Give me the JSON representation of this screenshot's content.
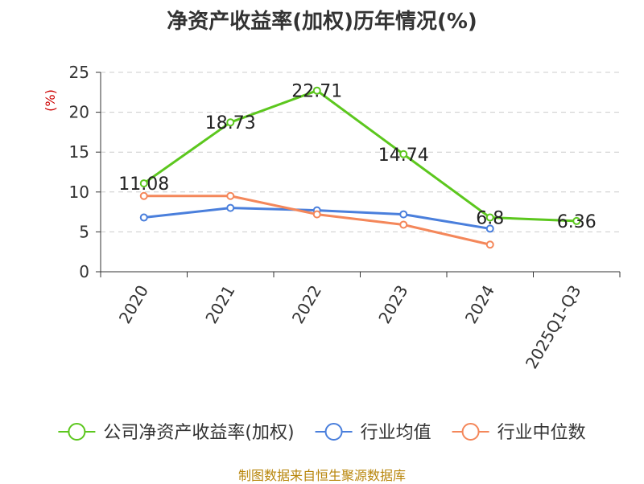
{
  "chart_data": {
    "type": "line",
    "title": "净资产收益率(加权)历年情况(%)",
    "ylabel": "(%)",
    "xlabel": "",
    "categories": [
      "2020",
      "2021",
      "2022",
      "2023",
      "2024",
      "2025Q1-Q3"
    ],
    "ylim": [
      0,
      25
    ],
    "yticks": [
      0,
      5,
      10,
      15,
      20,
      25
    ],
    "grid": true,
    "legend_position": "bottom",
    "series": [
      {
        "name": "公司净资产收益率(加权)",
        "color": "#5cc71e",
        "values": [
          11.08,
          18.73,
          22.71,
          14.74,
          6.8,
          6.36
        ],
        "labels": [
          "11.08",
          "18.73",
          "22.71",
          "14.74",
          "6.8",
          "6.36"
        ]
      },
      {
        "name": "行业均值",
        "color": "#4a7fdc",
        "values": [
          6.8,
          8.0,
          7.7,
          7.2,
          5.4,
          null
        ]
      },
      {
        "name": "行业中位数",
        "color": "#f4875a",
        "values": [
          9.5,
          9.5,
          7.2,
          5.9,
          3.4,
          null
        ]
      }
    ],
    "source": "制图数据来自恒生聚源数据库"
  },
  "colors": {
    "unit_label": "#cc0000",
    "axis": "#333333",
    "grid": "#cccccc"
  }
}
